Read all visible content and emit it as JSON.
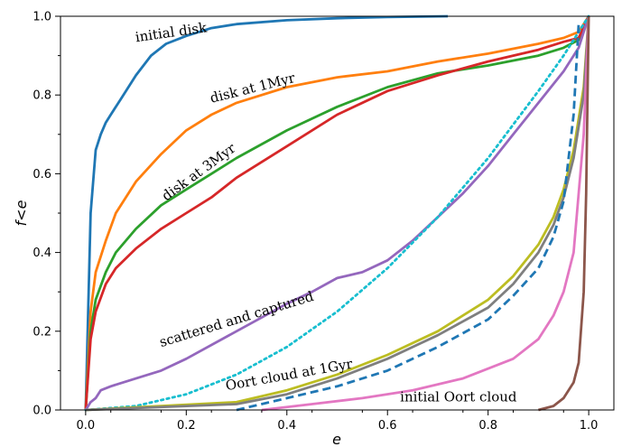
{
  "chart_data": {
    "type": "line",
    "xlabel": "e",
    "ylabel": "f<e",
    "xlim": [
      -0.05,
      1.05
    ],
    "ylim": [
      0.0,
      1.0
    ],
    "x_ticks": [
      "0.0",
      "0.2",
      "0.4",
      "0.6",
      "0.8",
      "1.0"
    ],
    "y_ticks": [
      "0.0",
      "0.2",
      "0.4",
      "0.6",
      "0.8",
      "1.0"
    ],
    "grid": false,
    "legend": "none",
    "series": [
      {
        "color": "#1f77b4",
        "style": "solid",
        "x": [
          0.0,
          0.01,
          0.02,
          0.03,
          0.04,
          0.05,
          0.07,
          0.1,
          0.13,
          0.16,
          0.2,
          0.25,
          0.3,
          0.4,
          0.5,
          0.6,
          0.72
        ],
        "y": [
          0.0,
          0.5,
          0.66,
          0.7,
          0.73,
          0.75,
          0.79,
          0.85,
          0.9,
          0.93,
          0.95,
          0.97,
          0.98,
          0.99,
          0.995,
          0.998,
          1.0
        ]
      },
      {
        "color": "#ff7f0e",
        "style": "solid",
        "x": [
          0.0,
          0.01,
          0.02,
          0.04,
          0.06,
          0.1,
          0.15,
          0.2,
          0.25,
          0.3,
          0.4,
          0.5,
          0.6,
          0.7,
          0.8,
          0.9,
          0.95,
          0.98,
          1.0
        ],
        "y": [
          0.0,
          0.25,
          0.35,
          0.43,
          0.5,
          0.58,
          0.65,
          0.71,
          0.75,
          0.78,
          0.82,
          0.845,
          0.86,
          0.885,
          0.905,
          0.93,
          0.945,
          0.96,
          1.0
        ]
      },
      {
        "color": "#2ca02c",
        "style": "solid",
        "x": [
          0.0,
          0.01,
          0.02,
          0.04,
          0.06,
          0.1,
          0.15,
          0.2,
          0.25,
          0.3,
          0.4,
          0.5,
          0.6,
          0.7,
          0.8,
          0.9,
          0.95,
          0.98,
          1.0
        ],
        "y": [
          0.0,
          0.2,
          0.28,
          0.35,
          0.4,
          0.46,
          0.52,
          0.56,
          0.6,
          0.64,
          0.71,
          0.77,
          0.82,
          0.855,
          0.875,
          0.9,
          0.92,
          0.94,
          1.0
        ]
      },
      {
        "color": "#d62728",
        "style": "solid",
        "x": [
          0.0,
          0.01,
          0.02,
          0.04,
          0.06,
          0.1,
          0.15,
          0.2,
          0.25,
          0.3,
          0.4,
          0.5,
          0.6,
          0.7,
          0.8,
          0.9,
          0.95,
          0.98,
          1.0
        ],
        "y": [
          0.0,
          0.18,
          0.25,
          0.32,
          0.36,
          0.41,
          0.46,
          0.5,
          0.54,
          0.59,
          0.67,
          0.75,
          0.81,
          0.85,
          0.885,
          0.915,
          0.935,
          0.945,
          1.0
        ]
      },
      {
        "color": "#9467bd",
        "style": "solid",
        "x": [
          0.0,
          0.01,
          0.02,
          0.03,
          0.05,
          0.1,
          0.15,
          0.2,
          0.3,
          0.4,
          0.45,
          0.5,
          0.55,
          0.6,
          0.65,
          0.7,
          0.75,
          0.8,
          0.85,
          0.9,
          0.95,
          0.98,
          1.0
        ],
        "y": [
          0.0,
          0.02,
          0.03,
          0.05,
          0.06,
          0.08,
          0.1,
          0.13,
          0.2,
          0.27,
          0.3,
          0.335,
          0.35,
          0.38,
          0.43,
          0.49,
          0.55,
          0.62,
          0.7,
          0.78,
          0.86,
          0.92,
          1.0
        ]
      },
      {
        "color": "#17becf",
        "style": "dotted",
        "x": [
          0.0,
          0.1,
          0.2,
          0.3,
          0.4,
          0.5,
          0.6,
          0.7,
          0.8,
          0.9,
          0.95,
          1.0
        ],
        "y": [
          0.0,
          0.01,
          0.04,
          0.09,
          0.16,
          0.25,
          0.36,
          0.49,
          0.64,
          0.81,
          0.9,
          1.0
        ]
      },
      {
        "color": "#bcbd22",
        "style": "solid",
        "x": [
          0.0,
          0.3,
          0.4,
          0.5,
          0.6,
          0.7,
          0.8,
          0.85,
          0.9,
          0.93,
          0.95,
          0.97,
          0.99,
          1.0
        ],
        "y": [
          0.0,
          0.02,
          0.05,
          0.09,
          0.14,
          0.2,
          0.28,
          0.34,
          0.42,
          0.49,
          0.56,
          0.66,
          0.82,
          1.0
        ]
      },
      {
        "color": "#7f7f7f",
        "style": "solid",
        "x": [
          0.0,
          0.3,
          0.4,
          0.5,
          0.6,
          0.7,
          0.8,
          0.85,
          0.9,
          0.93,
          0.95,
          0.97,
          0.99,
          1.0
        ],
        "y": [
          0.0,
          0.015,
          0.04,
          0.08,
          0.13,
          0.19,
          0.26,
          0.32,
          0.4,
          0.47,
          0.54,
          0.64,
          0.8,
          1.0
        ]
      },
      {
        "color": "#1f77b4",
        "style": "dashed",
        "x": [
          0.3,
          0.4,
          0.5,
          0.6,
          0.7,
          0.8,
          0.85,
          0.9,
          0.93,
          0.95,
          0.97,
          0.98
        ],
        "y": [
          0.0,
          0.03,
          0.06,
          0.1,
          0.16,
          0.23,
          0.29,
          0.36,
          0.44,
          0.53,
          0.75,
          0.98
        ]
      },
      {
        "color": "#e377c2",
        "style": "solid",
        "x": [
          0.35,
          0.45,
          0.55,
          0.65,
          0.75,
          0.85,
          0.9,
          0.93,
          0.95,
          0.97,
          0.99,
          1.0
        ],
        "y": [
          0.0,
          0.015,
          0.03,
          0.05,
          0.08,
          0.13,
          0.18,
          0.24,
          0.3,
          0.4,
          0.7,
          1.0
        ]
      },
      {
        "color": "#8c564b",
        "style": "solid",
        "x": [
          0.9,
          0.93,
          0.95,
          0.97,
          0.98,
          0.99,
          0.995,
          1.0
        ],
        "y": [
          0.0,
          0.01,
          0.03,
          0.07,
          0.12,
          0.3,
          0.55,
          1.0
        ]
      }
    ],
    "annotations": [
      {
        "text": "initial disk",
        "x": 0.1,
        "y": 0.935,
        "rotation": -8
      },
      {
        "text": "disk at 1Myr",
        "x": 0.25,
        "y": 0.78,
        "rotation": -14
      },
      {
        "text": "disk at 3Myr",
        "x": 0.16,
        "y": 0.53,
        "rotation": -36
      },
      {
        "text": "scattered and captured",
        "x": 0.15,
        "y": 0.16,
        "rotation": -17
      },
      {
        "text": "Oort cloud at 1Gyr",
        "x": 0.28,
        "y": 0.05,
        "rotation": -10
      },
      {
        "text": "initial Oort cloud",
        "x": 0.625,
        "y": 0.022,
        "rotation": 0
      }
    ]
  }
}
